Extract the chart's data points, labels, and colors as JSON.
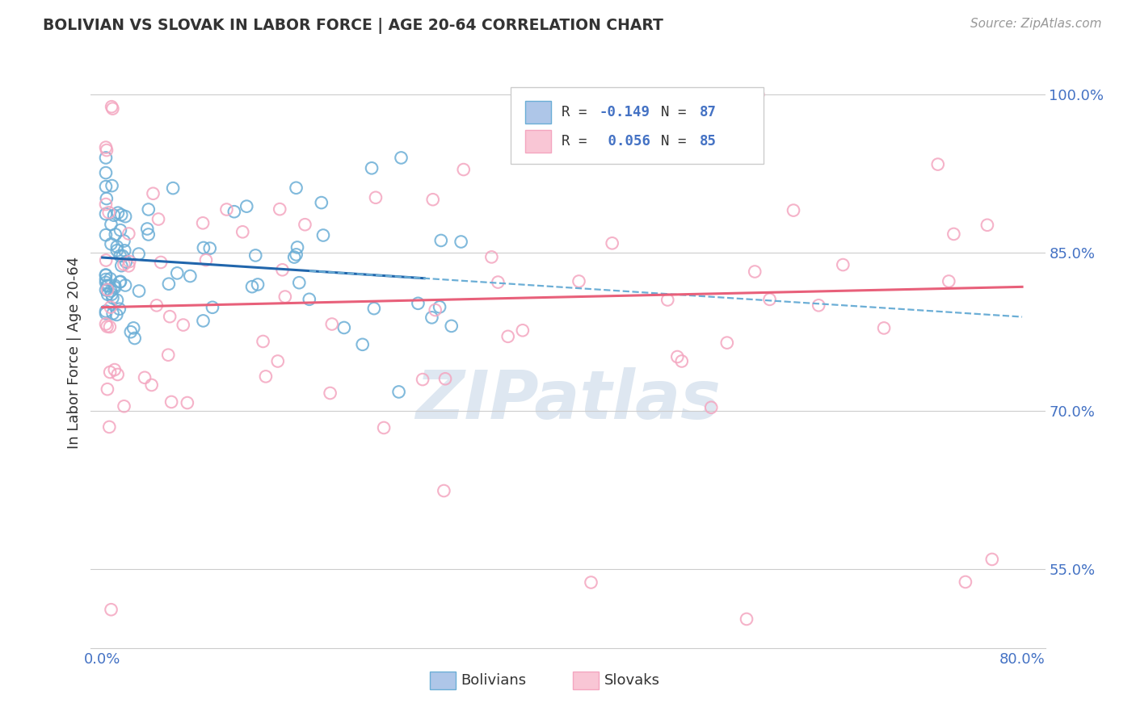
{
  "title": "BOLIVIAN VS SLOVAK IN LABOR FORCE | AGE 20-64 CORRELATION CHART",
  "source": "Source: ZipAtlas.com",
  "ylabel": "In Labor Force | Age 20-64",
  "xlim": [
    -0.01,
    0.82
  ],
  "ylim": [
    0.475,
    1.035
  ],
  "yticks": [
    0.55,
    0.7,
    0.85,
    1.0
  ],
  "ytick_labels": [
    "55.0%",
    "70.0%",
    "85.0%",
    "100.0%"
  ],
  "blue_color": "#6baed6",
  "blue_face": "#aec6e8",
  "pink_color": "#f4a6c0",
  "pink_face": "#f9c6d5",
  "blue_line_color": "#2166ac",
  "blue_dashed_color": "#6baed6",
  "pink_line_color": "#e8607a",
  "legend_color": "#4472c4",
  "tick_color": "#4472c4",
  "grid_color": "#cccccc",
  "watermark_color": "#c8d8e8",
  "R_blue": -0.149,
  "N_blue": 87,
  "R_pink": 0.056,
  "N_pink": 85
}
